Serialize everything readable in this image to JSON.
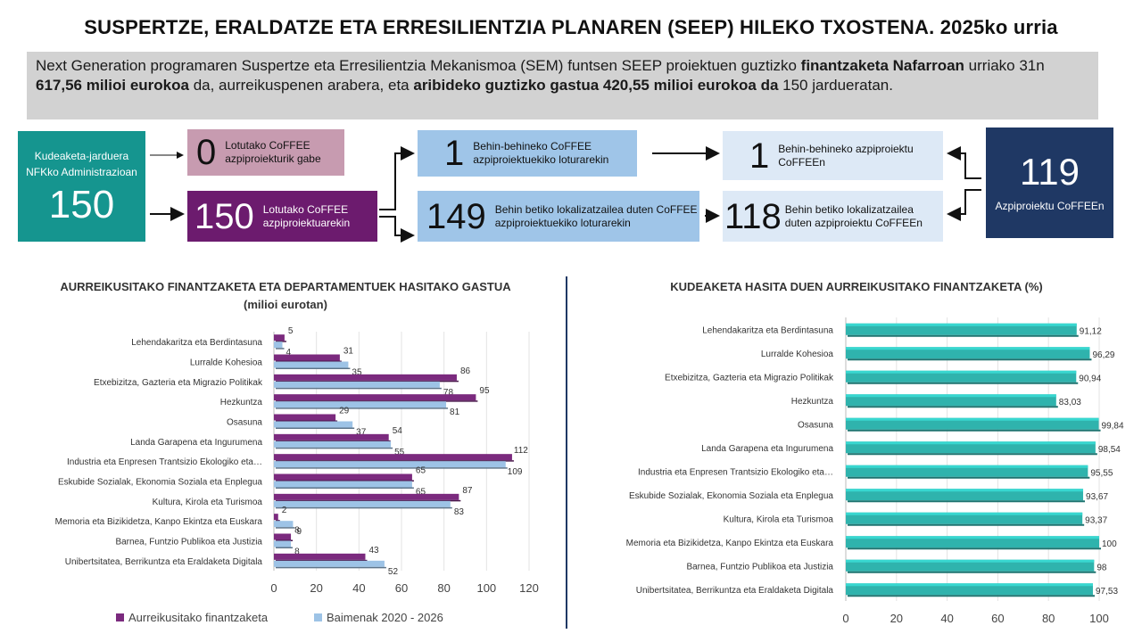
{
  "header": {
    "title": "SUSPERTZE, ERALDATZE ETA ERRESILIENTZIA PLANAREN (SEEP) HILEKO TXOSTENA. 2025ko urria"
  },
  "intro": {
    "part1": "Next Generation programaren Suspertze eta Erresilientzia Mekanismoa (SEM) funtsen SEEP proiektuen guztizko ",
    "bold1": "finantzaketa Nafarroan",
    "part2": " urriako 31n ",
    "bold2": "617,56 milioi eurokoa",
    "part3": " da, aurreikuspenen arabera, eta ",
    "bold3": "aribideko guztizko gastua 420,55 milioi eurokoa da",
    "part4": " 150 jardueratan."
  },
  "flow": {
    "admin": {
      "label": "Kudeaketa-jarduera NFKko Administrazioan",
      "value": "150"
    },
    "zero": {
      "value": "0",
      "label": "Lotutako CoFFEE azpiproiekturik gabe"
    },
    "linked": {
      "value": "150",
      "label": "Lotutako CoFFEE azpiproiektuarekin"
    },
    "prov_link": {
      "value": "1",
      "label": "Behin-behineko CoFFEE azpiproiektuekiko loturarekin"
    },
    "def_link": {
      "value": "149",
      "label": "Behin betiko lokalizatzailea duten CoFFEE azpiproiektuekiko loturarekin"
    },
    "prov_sub": {
      "value": "1",
      "label": "Behin-behineko azpiproiektu CoFFEEn"
    },
    "def_sub": {
      "value": "118",
      "label": "Behin betiko lokalizatzailea duten azpiproiektu CoFFEEn"
    },
    "total_sub": {
      "value": "119",
      "label": "Azpiproiektu CoFFEEn"
    }
  },
  "chart_data": [
    {
      "type": "bar",
      "orientation": "horizontal",
      "title": "AURREIKUSITAKO FINANTZAKETA ETA DEPARTAMENTUEK HASITAKO GASTUA (milioi eurotan)",
      "categories": [
        "Lehendakaritza eta Berdintasuna",
        "Lurralde Kohesioa",
        "Etxebizitza, Gazteria eta Migrazio Politikak",
        "Hezkuntza",
        "Osasuna",
        "Landa Garapena eta Ingurumena",
        "Industria eta Enpresen Trantsizio Ekologiko eta…",
        "Eskubide Sozialak, Ekonomia Soziala eta Enplegua",
        "Kultura, Kirola eta Turismoa",
        "Memoria eta Bizikidetza, Kanpo Ekintza eta Euskara",
        "Barnea, Funtzio Publikoa eta Justizia",
        "Unibertsitatea, Berrikuntza eta Eraldaketa Digitala"
      ],
      "series": [
        {
          "name": "Aurreikusitako finantzaketa",
          "color": "#7b2a7e",
          "values": [
            5,
            31,
            86,
            95,
            29,
            54,
            112,
            65,
            87,
            2,
            8,
            43
          ]
        },
        {
          "name": "Baimenak 2020 - 2026",
          "color": "#9dc3e6",
          "values": [
            4,
            35,
            78,
            81,
            37,
            55,
            109,
            65,
            83,
            9,
            8,
            52
          ]
        }
      ],
      "xlim": [
        0,
        120
      ],
      "ticks": [
        "0",
        "20",
        "40",
        "60",
        "80",
        "100",
        "120"
      ],
      "grid": true,
      "legend": "bottom"
    },
    {
      "type": "bar",
      "orientation": "horizontal",
      "title": "KUDEAKETA HASITA DUEN AURREIKUSITAKO FINANTZAKETA (%)",
      "categories": [
        "Lehendakaritza eta Berdintasuna",
        "Lurralde Kohesioa",
        "Etxebizitza, Gazteria eta Migrazio Politikak",
        "Hezkuntza",
        "Osasuna",
        "Landa Garapena eta Ingurumena",
        "Industria eta Enpresen Trantsizio Ekologiko eta…",
        "Eskubide Sozialak, Ekonomia Soziala eta Enplegua",
        "Kultura, Kirola eta Turismoa",
        "Memoria eta Bizikidetza, Kanpo Ekintza eta Euskara",
        "Barnea, Funtzio Publikoa eta Justizia",
        "Unibertsitatea, Berrikuntza eta Eraldaketa Digitala"
      ],
      "values": [
        91.12,
        96.29,
        90.94,
        83.03,
        99.84,
        98.54,
        95.55,
        93.67,
        93.37,
        100,
        98,
        97.53
      ],
      "value_labels": [
        "91,12",
        "96,29",
        "90,94",
        "83,03",
        "99,84",
        "98,54",
        "95,55",
        "93,67",
        "93,37",
        "100",
        "98",
        "97,53"
      ],
      "color": "#2fb3ad",
      "xlim": [
        0,
        100
      ],
      "ticks": [
        "0",
        "20",
        "40",
        "60",
        "80",
        "100"
      ],
      "grid": true
    }
  ]
}
